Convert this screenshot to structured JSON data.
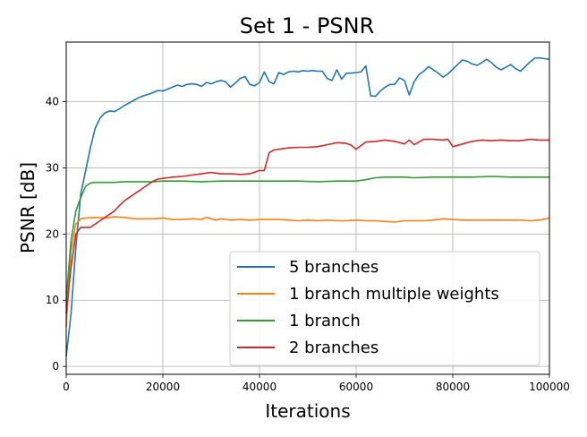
{
  "chart_data": {
    "type": "line",
    "title": "Set 1  - PSNR",
    "xlabel": "Iterations",
    "ylabel": "PSNR [dB]",
    "xlim": [
      0,
      100000
    ],
    "ylim": [
      -1.2,
      49.0
    ],
    "xticks": [
      0,
      20000,
      40000,
      60000,
      80000,
      100000
    ],
    "yticks": [
      0,
      10,
      20,
      30,
      40
    ],
    "grid": true,
    "legend_position": "lower-right",
    "series": [
      {
        "name": "5 branches",
        "color": "#1f77b4",
        "x": [
          0,
          1000,
          2000,
          3000,
          4000,
          5000,
          6000,
          7000,
          8000,
          9000,
          10000,
          11000,
          12000,
          13000,
          14000,
          15000,
          16000,
          17000,
          18000,
          19000,
          20000,
          21000,
          22000,
          23000,
          24000,
          25000,
          26000,
          27000,
          28000,
          29000,
          30000,
          31000,
          32000,
          33000,
          34000,
          35000,
          36000,
          37000,
          38000,
          39000,
          40000,
          41000,
          42000,
          43000,
          44000,
          45000,
          46000,
          47000,
          48000,
          49000,
          50000,
          51000,
          52000,
          53000,
          54000,
          55000,
          56000,
          57000,
          58000,
          59000,
          60000,
          61000,
          62000,
          63000,
          64000,
          65000,
          66000,
          67000,
          68000,
          69000,
          70000,
          71000,
          72000,
          73000,
          74000,
          75000,
          76000,
          77000,
          78000,
          79000,
          80000,
          81000,
          82000,
          83000,
          84000,
          85000,
          86000,
          87000,
          88000,
          89000,
          90000,
          91000,
          92000,
          93000,
          94000,
          95000,
          96000,
          97000,
          98000,
          99000,
          100000
        ],
        "y": [
          1.5,
          8.0,
          18.0,
          26.0,
          29.5,
          33.0,
          36.0,
          37.5,
          38.3,
          38.6,
          38.5,
          38.9,
          39.4,
          39.8,
          40.2,
          40.6,
          40.9,
          41.1,
          41.4,
          41.7,
          41.6,
          41.9,
          42.2,
          42.5,
          42.3,
          42.6,
          42.7,
          42.6,
          42.3,
          42.9,
          42.7,
          43.0,
          43.2,
          43.0,
          42.2,
          42.8,
          43.5,
          43.8,
          42.6,
          42.4,
          42.9,
          44.5,
          43.0,
          42.7,
          44.4,
          44.1,
          44.5,
          44.6,
          44.5,
          44.7,
          44.6,
          44.7,
          44.6,
          44.6,
          43.5,
          43.2,
          44.8,
          43.4,
          44.3,
          44.3,
          44.4,
          44.5,
          45.4,
          40.9,
          40.8,
          41.6,
          42.2,
          42.6,
          42.6,
          43.6,
          43.2,
          41.0,
          43.0,
          44.1,
          44.6,
          45.3,
          44.8,
          44.3,
          43.7,
          44.2,
          44.9,
          45.6,
          46.3,
          46.1,
          45.7,
          45.5,
          45.9,
          46.4,
          45.9,
          45.2,
          44.8,
          45.2,
          45.6,
          45.0,
          44.6,
          45.3,
          46.0,
          46.6,
          46.6,
          46.5,
          46.4
        ]
      },
      {
        "name": "1 branch multiple weights",
        "color": "#ff7f0e",
        "x": [
          0,
          1000,
          2000,
          3000,
          4000,
          6000,
          8000,
          10000,
          12000,
          14000,
          16000,
          18000,
          20000,
          22000,
          24000,
          26000,
          28000,
          29000,
          30000,
          31000,
          32000,
          34000,
          36000,
          38000,
          40000,
          42000,
          44000,
          46000,
          48000,
          50000,
          52000,
          54000,
          56000,
          58000,
          60000,
          62000,
          64000,
          66000,
          68000,
          70000,
          72000,
          74000,
          76000,
          78000,
          80000,
          82000,
          84000,
          86000,
          88000,
          90000,
          92000,
          94000,
          96000,
          98000,
          100000
        ],
        "y": [
          6.0,
          17.5,
          21.5,
          22.3,
          22.4,
          22.5,
          22.4,
          22.6,
          22.5,
          22.3,
          22.3,
          22.3,
          22.4,
          22.2,
          22.2,
          22.3,
          22.2,
          22.5,
          22.3,
          22.1,
          22.3,
          22.1,
          22.2,
          22.1,
          22.2,
          22.2,
          22.2,
          22.1,
          22.0,
          22.1,
          22.0,
          22.1,
          22.0,
          22.0,
          22.1,
          22.0,
          22.0,
          21.9,
          21.8,
          22.0,
          22.0,
          22.0,
          22.1,
          22.3,
          22.2,
          22.1,
          22.1,
          22.1,
          22.1,
          22.1,
          22.1,
          22.1,
          22.0,
          22.1,
          22.4
        ]
      },
      {
        "name": "1 branch",
        "color": "#2ca02c",
        "x": [
          0,
          1000,
          2000,
          3000,
          4000,
          5000,
          6000,
          8000,
          10000,
          12000,
          14000,
          16000,
          18000,
          20000,
          24000,
          28000,
          32000,
          36000,
          40000,
          44000,
          48000,
          52000,
          56000,
          60000,
          62000,
          64000,
          66000,
          68000,
          70000,
          72000,
          76000,
          80000,
          84000,
          88000,
          92000,
          96000,
          100000
        ],
        "y": [
          10.0,
          19.0,
          23.5,
          25.5,
          27.2,
          27.7,
          27.8,
          27.8,
          27.8,
          27.9,
          27.9,
          27.9,
          27.9,
          28.0,
          28.0,
          27.9,
          28.0,
          28.0,
          28.0,
          28.0,
          28.0,
          27.9,
          28.0,
          28.0,
          28.2,
          28.5,
          28.6,
          28.6,
          28.6,
          28.5,
          28.6,
          28.6,
          28.6,
          28.7,
          28.6,
          28.6,
          28.6
        ]
      },
      {
        "name": "2 branches",
        "color": "#d62728",
        "x": [
          0,
          1000,
          2000,
          3000,
          4000,
          5000,
          6000,
          7000,
          8000,
          9000,
          10000,
          11000,
          12000,
          13000,
          14000,
          15000,
          16000,
          17000,
          18000,
          19000,
          20000,
          21000,
          22000,
          24000,
          26000,
          28000,
          30000,
          31000,
          32000,
          34000,
          36000,
          38000,
          40000,
          41000,
          42000,
          43000,
          44000,
          46000,
          48000,
          50000,
          52000,
          54000,
          56000,
          58000,
          59000,
          60000,
          62000,
          64000,
          66000,
          68000,
          70000,
          71000,
          72000,
          74000,
          76000,
          78000,
          79000,
          80000,
          82000,
          84000,
          86000,
          88000,
          90000,
          92000,
          94000,
          96000,
          98000,
          100000
        ],
        "y": [
          8.0,
          15.0,
          20.0,
          21.0,
          21.0,
          21.0,
          21.5,
          22.0,
          22.5,
          23.0,
          23.5,
          24.3,
          25.0,
          25.5,
          26.0,
          26.5,
          27.0,
          27.5,
          28.0,
          28.3,
          28.4,
          28.5,
          28.6,
          28.7,
          28.9,
          29.1,
          29.3,
          29.2,
          29.1,
          29.1,
          29.0,
          29.1,
          29.6,
          29.6,
          32.3,
          32.7,
          32.8,
          33.0,
          33.1,
          33.1,
          33.2,
          33.5,
          33.8,
          33.7,
          33.4,
          32.8,
          33.9,
          34.0,
          34.2,
          34.0,
          33.6,
          34.2,
          33.5,
          34.3,
          34.3,
          34.2,
          34.3,
          33.2,
          33.6,
          34.0,
          34.2,
          34.1,
          34.2,
          34.1,
          34.1,
          34.3,
          34.2,
          34.2
        ]
      }
    ]
  }
}
